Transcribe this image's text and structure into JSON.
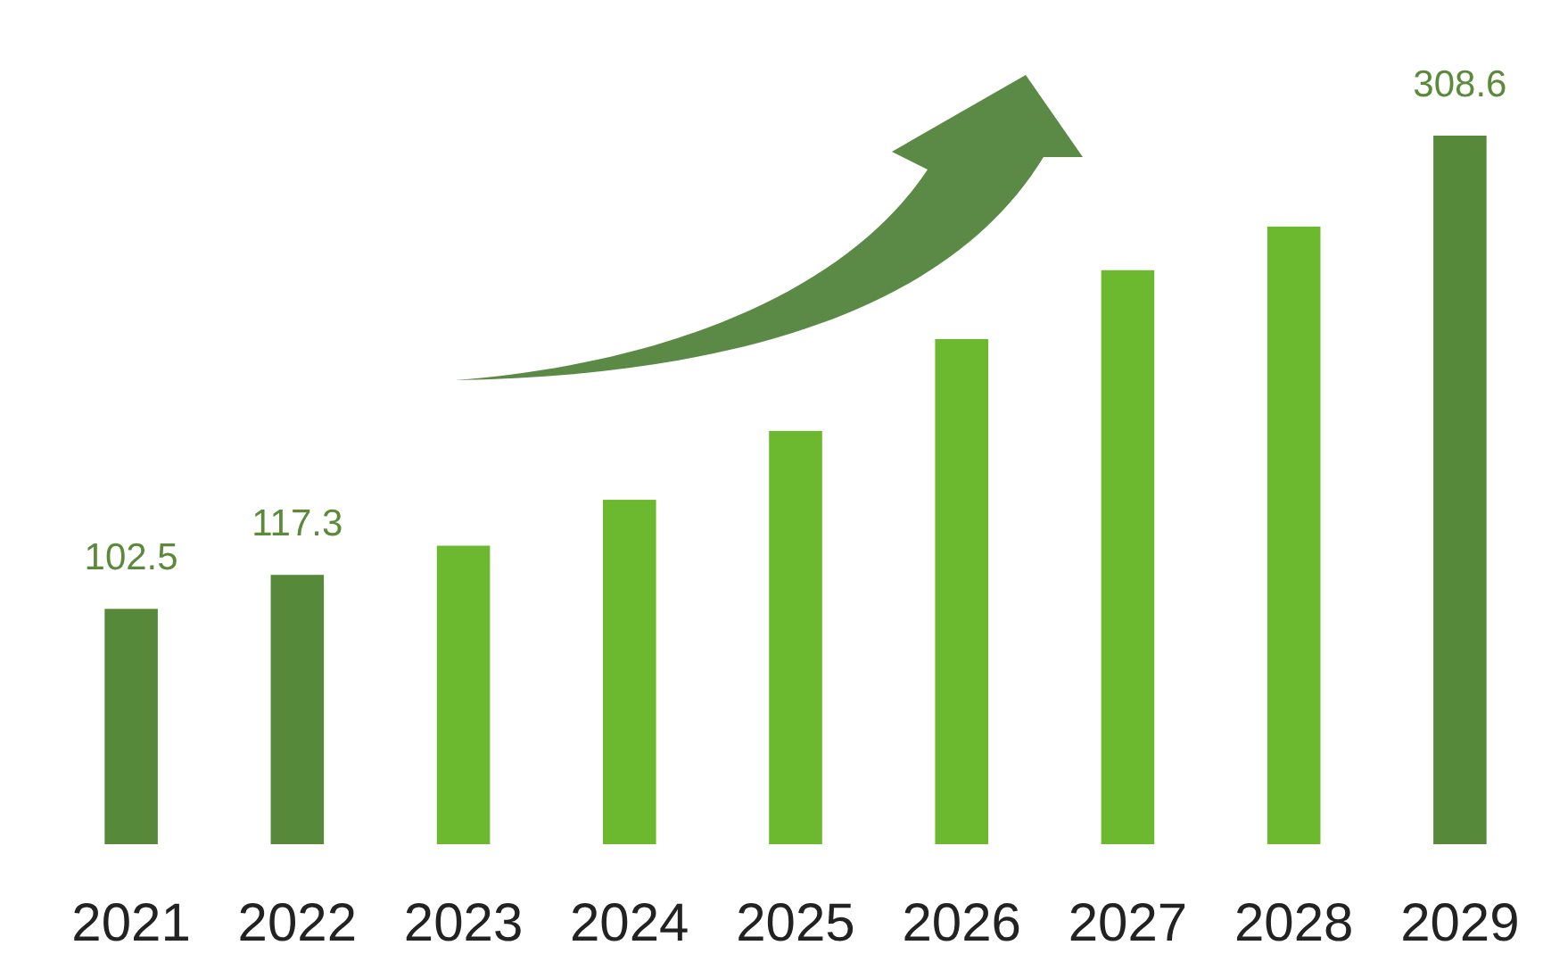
{
  "chart_data": {
    "type": "bar",
    "categories": [
      "2021",
      "2022",
      "2023",
      "2024",
      "2025",
      "2026",
      "2027",
      "2028",
      "2029"
    ],
    "values": [
      102.5,
      117.3,
      130,
      150,
      180,
      220,
      250,
      269,
      308.6
    ],
    "colors": [
      "#568a3a",
      "#568a3a",
      "#6cb82f",
      "#6cb82f",
      "#6cb82f",
      "#6cb82f",
      "#6cb82f",
      "#6cb82f",
      "#568a3a"
    ],
    "value_labels": [
      "102.5",
      "117.3",
      null,
      null,
      null,
      null,
      null,
      null,
      "308.6"
    ]
  }
}
